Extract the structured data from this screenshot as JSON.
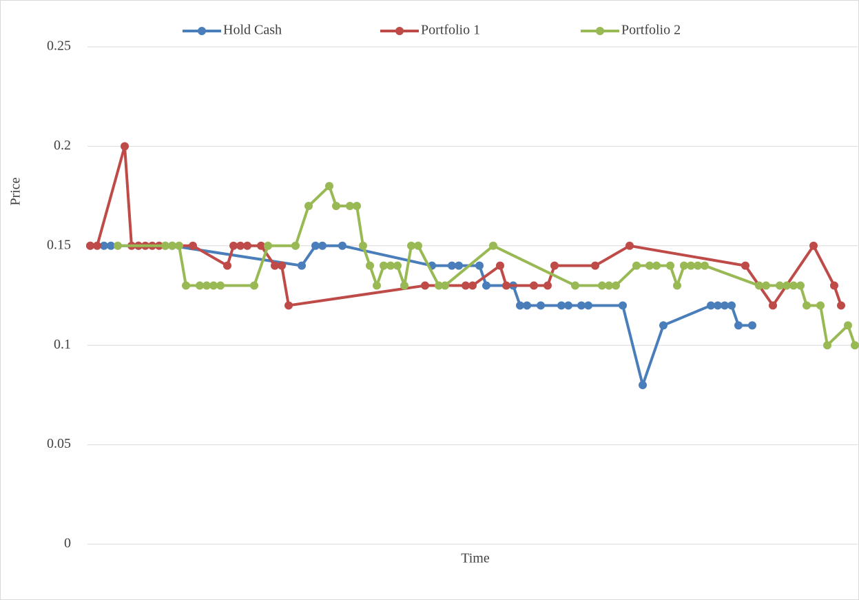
{
  "chart_data": {
    "type": "line",
    "x_label": "Time",
    "y_label": "Price",
    "xlim": [
      0,
      1118
    ],
    "ylim": [
      0,
      0.25
    ],
    "yticks": [
      0,
      0.05,
      0.1,
      0.15,
      0.2,
      0.25
    ],
    "grid": true,
    "legend": "top",
    "series": [
      {
        "name": "Hold Cash",
        "color": "#4a7ebb",
        "x": [
          4,
          24,
          34,
          74,
          113,
          123,
          311,
          331,
          341,
          370,
          500,
          529,
          539,
          569,
          579,
          618,
          628,
          638,
          658,
          688,
          698,
          717,
          727,
          777,
          806,
          836,
          905,
          915,
          925,
          935,
          945,
          965
        ],
        "values": [
          0.15,
          0.15,
          0.15,
          0.15,
          0.15,
          0.15,
          0.14,
          0.15,
          0.15,
          0.15,
          0.14,
          0.14,
          0.14,
          0.14,
          0.13,
          0.13,
          0.12,
          0.12,
          0.12,
          0.12,
          0.12,
          0.12,
          0.12,
          0.12,
          0.08,
          0.11,
          0.12,
          0.12,
          0.12,
          0.12,
          0.11,
          0.11
        ]
      },
      {
        "name": "Portfolio 1",
        "color": "#be4b48",
        "x": [
          4,
          14,
          54,
          64,
          74,
          84,
          94,
          104,
          153,
          203,
          212,
          222,
          232,
          252,
          272,
          282,
          292,
          490,
          549,
          559,
          599,
          608,
          648,
          668,
          678,
          737,
          787,
          955,
          995,
          1054,
          1084,
          1094
        ],
        "values": [
          0.15,
          0.15,
          0.2,
          0.15,
          0.15,
          0.15,
          0.15,
          0.15,
          0.15,
          0.14,
          0.15,
          0.15,
          0.15,
          0.15,
          0.14,
          0.14,
          0.12,
          0.13,
          0.13,
          0.13,
          0.14,
          0.13,
          0.13,
          0.13,
          0.14,
          0.14,
          0.15,
          0.14,
          0.12,
          0.15,
          0.13,
          0.12
        ]
      },
      {
        "name": "Portfolio 2",
        "color": "#98b954",
        "x": [
          44,
          113,
          123,
          133,
          143,
          163,
          173,
          183,
          193,
          242,
          262,
          302,
          321,
          351,
          361,
          381,
          391,
          400,
          410,
          420,
          430,
          440,
          450,
          460,
          470,
          480,
          510,
          519,
          589,
          708,
          747,
          757,
          767,
          797,
          816,
          826,
          846,
          856,
          866,
          876,
          886,
          896,
          975,
          985,
          1005,
          1015,
          1025,
          1035,
          1044,
          1064,
          1074,
          1104,
          1114
        ],
        "values": [
          0.15,
          0.15,
          0.15,
          0.15,
          0.13,
          0.13,
          0.13,
          0.13,
          0.13,
          0.13,
          0.15,
          0.15,
          0.17,
          0.18,
          0.17,
          0.17,
          0.17,
          0.15,
          0.14,
          0.13,
          0.14,
          0.14,
          0.14,
          0.13,
          0.15,
          0.15,
          0.13,
          0.13,
          0.15,
          0.13,
          0.13,
          0.13,
          0.13,
          0.14,
          0.14,
          0.14,
          0.14,
          0.13,
          0.14,
          0.14,
          0.14,
          0.14,
          0.13,
          0.13,
          0.13,
          0.13,
          0.13,
          0.13,
          0.12,
          0.12,
          0.1,
          0.11,
          0.1
        ]
      }
    ]
  }
}
